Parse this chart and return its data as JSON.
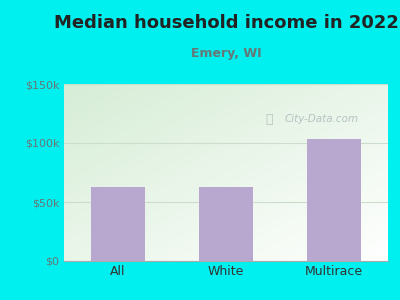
{
  "title": "Median household income in 2022",
  "subtitle": "Emery, WI",
  "categories": [
    "All",
    "White",
    "Multirace"
  ],
  "values": [
    63000,
    63000,
    103000
  ],
  "bar_color": "#b8a8d0",
  "background_color": "#00efef",
  "plot_bg_topleft": "#d6edd6",
  "plot_bg_bottomright": "#ffffff",
  "title_color": "#222222",
  "subtitle_color": "#667777",
  "axis_label_color": "#333333",
  "tick_color": "#667777",
  "ylim": [
    0,
    150000
  ],
  "yticks": [
    0,
    50000,
    100000,
    150000
  ],
  "ytick_labels": [
    "$0",
    "$50k",
    "$100k",
    "$150k"
  ],
  "title_fontsize": 13,
  "subtitle_fontsize": 9,
  "watermark_text": "City-Data.com",
  "watermark_color": "#aabbbb",
  "grid_color": "#ccddcc"
}
